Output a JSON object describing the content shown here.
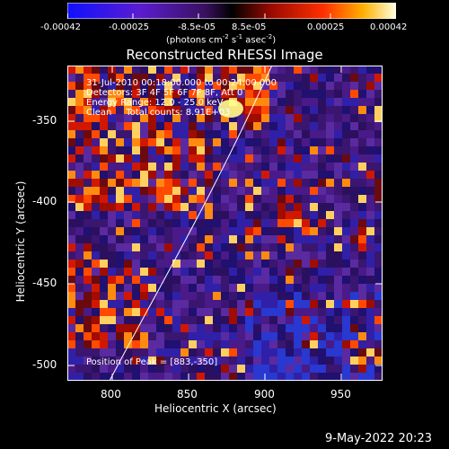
{
  "colorbar": {
    "tick_labels": [
      "-0.00042",
      "-0.00025",
      "-8.5e-05",
      "8.5e-05",
      "0.00025",
      "0.00042"
    ],
    "units": "(photons cm",
    "units_exp1": "-2",
    "units_s": " s",
    "units_exp2": "-1",
    "units_asec": " asec",
    "units_exp3": "-2",
    "units_close": ")"
  },
  "title": "Reconstructed RHESSI Image",
  "overlay": {
    "line1": "31-Jul-2010 00:18:00.000 to 00:24:00.000",
    "line2": "Detectors: 3F 4F 5F 6F 7F 8F, Att 0",
    "line3": "Energy Range: 12.0 - 25.0 keV",
    "line4": "Clean     Total counts: 8.91E+03",
    "peak": "Position of Peak = [883,-350]"
  },
  "axes": {
    "xlabel": "Heliocentric X (arcsec)",
    "ylabel": "Heliocentric Y (arcsec)",
    "xticks": [
      "800",
      "850",
      "900",
      "950"
    ],
    "yticks": [
      "-350",
      "-400",
      "-450",
      "-500"
    ]
  },
  "footer": "9-May-2022 20:23",
  "colors": {
    "background": "#000000",
    "limb": "#ffffff"
  }
}
